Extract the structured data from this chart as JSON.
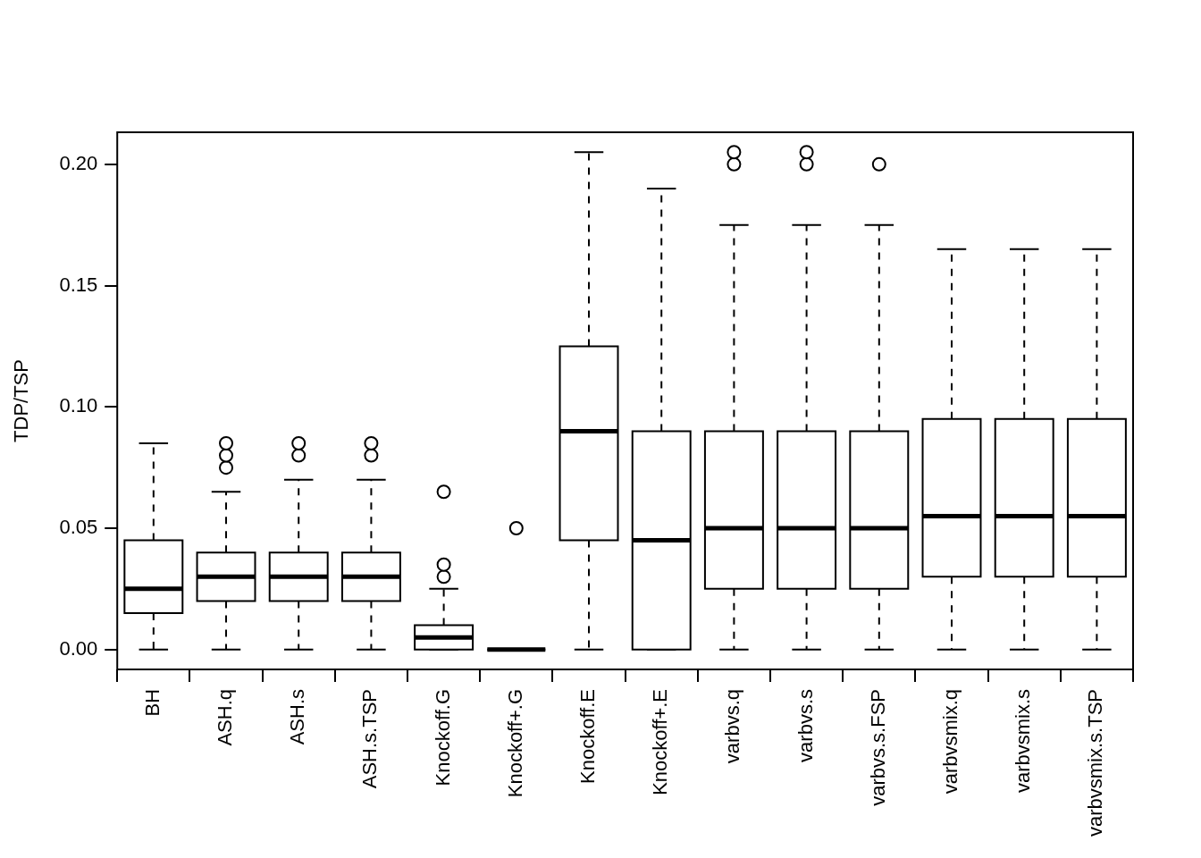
{
  "chart_data": {
    "type": "box",
    "ylabel": "TDP/TSP",
    "categories": [
      "BH",
      "ASH.q",
      "ASH.s",
      "ASH.s.TSP",
      "Knockoff.G",
      "Knockoff+.G",
      "Knockoff.E",
      "Knockoff+.E",
      "varbvs.q",
      "varbvs.s",
      "varbvs.s.FSP",
      "varbvsmix.q",
      "varbvsmix.s",
      "varbvsmix.s.TSP"
    ],
    "boxes": [
      {
        "low": 0,
        "q1": 0.015,
        "median": 0.025,
        "q3": 0.045,
        "high": 0.085
      },
      {
        "low": 0,
        "q1": 0.02,
        "median": 0.03,
        "q3": 0.04,
        "high": 0.065,
        "outliers": [
          0.075,
          0.08,
          0.085
        ]
      },
      {
        "low": 0,
        "q1": 0.02,
        "median": 0.03,
        "q3": 0.04,
        "high": 0.07,
        "outliers": [
          0.08,
          0.085
        ]
      },
      {
        "low": 0,
        "q1": 0.02,
        "median": 0.03,
        "q3": 0.04,
        "high": 0.07,
        "outliers": [
          0.08,
          0.085
        ]
      },
      {
        "low": 0,
        "q1": 0,
        "median": 0.005,
        "q3": 0.01,
        "high": 0.025,
        "outliers": [
          0.03,
          0.035,
          0.065
        ]
      },
      {
        "low": 0,
        "q1": 0,
        "median": 0,
        "q3": 0,
        "high": 0,
        "outliers": [
          0.05
        ]
      },
      {
        "low": 0,
        "q1": 0.045,
        "median": 0.09,
        "q3": 0.125,
        "high": 0.205
      },
      {
        "low": 0,
        "q1": 0,
        "median": 0.045,
        "q3": 0.09,
        "high": 0.19
      },
      {
        "low": 0,
        "q1": 0.025,
        "median": 0.05,
        "q3": 0.09,
        "high": 0.175,
        "outliers": [
          0.2,
          0.205
        ]
      },
      {
        "low": 0,
        "q1": 0.025,
        "median": 0.05,
        "q3": 0.09,
        "high": 0.175,
        "outliers": [
          0.2,
          0.205
        ]
      },
      {
        "low": 0,
        "q1": 0.025,
        "median": 0.05,
        "q3": 0.09,
        "high": 0.175,
        "outliers": [
          0.2
        ]
      },
      {
        "low": 0,
        "q1": 0.03,
        "median": 0.055,
        "q3": 0.095,
        "high": 0.165
      },
      {
        "low": 0,
        "q1": 0.03,
        "median": 0.055,
        "q3": 0.095,
        "high": 0.165
      },
      {
        "low": 0,
        "q1": 0.03,
        "median": 0.055,
        "q3": 0.095,
        "high": 0.165
      }
    ],
    "ylim": [
      -0.0082,
      0.2132
    ],
    "yticks": [
      {
        "value": 0,
        "label": "0.00"
      },
      {
        "value": 0.05,
        "label": "0.05"
      },
      {
        "value": 0.1,
        "label": "0.10"
      },
      {
        "value": 0.15,
        "label": "0.15"
      },
      {
        "value": 0.2,
        "label": "0.20"
      }
    ],
    "grid": false,
    "legend": false
  }
}
